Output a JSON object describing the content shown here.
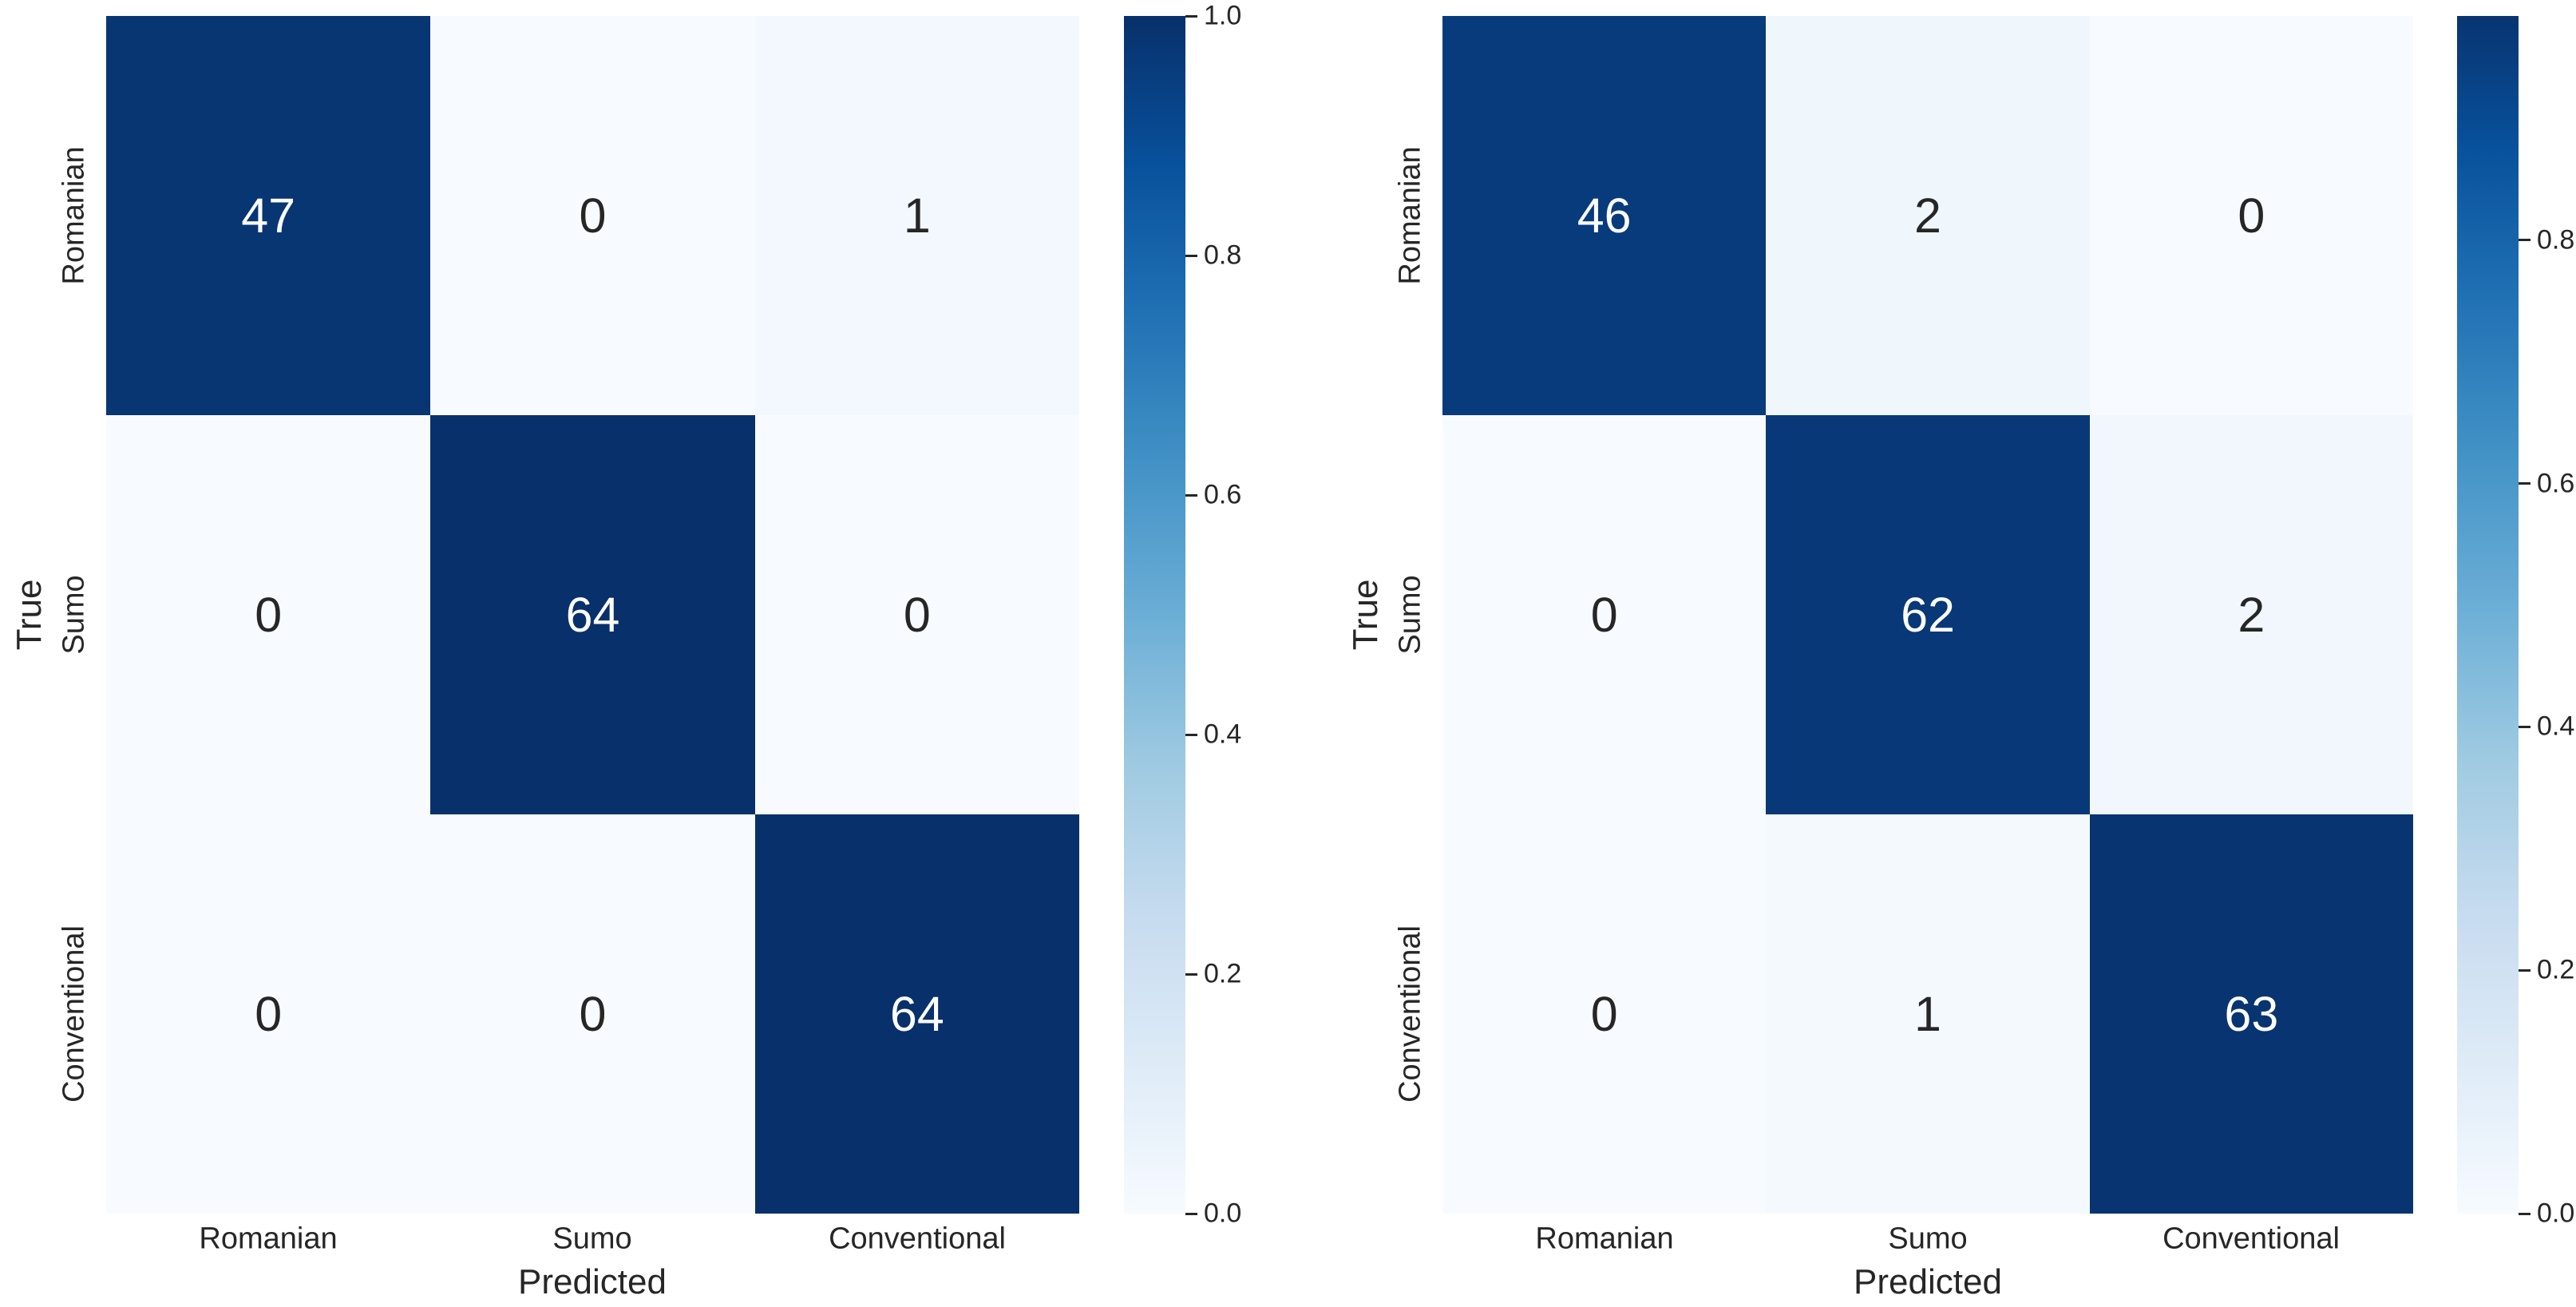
{
  "figure": {
    "background": "#ffffff",
    "text_color": "#262626",
    "annotation_text_on_dark": "#ffffff",
    "annotation_text_on_light": "#262626",
    "colormap": {
      "name": "Blues",
      "anchors": [
        "#f7fbff",
        "#deebf7",
        "#c6dbef",
        "#9ecae1",
        "#6baed6",
        "#4292c6",
        "#2171b5",
        "#08519c",
        "#08306b"
      ]
    }
  },
  "chart_data": [
    {
      "type": "heatmap",
      "title": "",
      "xlabel": "Predicted",
      "ylabel": "True",
      "x_categories": [
        "Romanian",
        "Sumo",
        "Conventional"
      ],
      "y_categories": [
        "Romanian",
        "Sumo",
        "Conventional"
      ],
      "values": [
        [
          47,
          0,
          1
        ],
        [
          0,
          64,
          0
        ],
        [
          0,
          0,
          64
        ]
      ],
      "normalization": "row",
      "color_scale_min": 0.0,
      "color_scale_max": 1.0,
      "colorbar_ticks": [
        "1.0",
        "0.8",
        "0.6",
        "0.4",
        "0.2",
        "0.0"
      ],
      "colorbar_position": "right",
      "grid": false
    },
    {
      "type": "heatmap",
      "title": "",
      "xlabel": "Predicted",
      "ylabel": "True",
      "x_categories": [
        "Romanian",
        "Sumo",
        "Conventional"
      ],
      "y_categories": [
        "Romanian",
        "Sumo",
        "Conventional"
      ],
      "values": [
        [
          46,
          2,
          0
        ],
        [
          0,
          62,
          2
        ],
        [
          0,
          1,
          63
        ]
      ],
      "normalization": "row",
      "color_scale_min": 0.0,
      "color_scale_max": 0.984375,
      "colorbar_ticks": [
        "0.8",
        "0.6",
        "0.4",
        "0.2",
        "0.0"
      ],
      "colorbar_position": "right",
      "grid": false
    }
  ]
}
